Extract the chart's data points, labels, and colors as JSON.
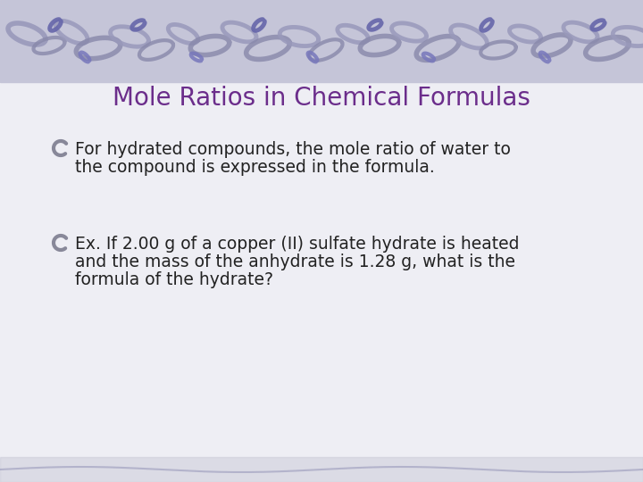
{
  "title": "Mole Ratios in Chemical Formulas",
  "title_color": "#6B2D8B",
  "title_fontsize": 20,
  "bullet1_line1": "For hydrated compounds, the mole ratio of water to",
  "bullet1_line2": "the compound is expressed in the formula.",
  "bullet2_line1": "Ex. If 2.00 g of a copper (II) sulfate hydrate is heated",
  "bullet2_line2": "and the mass of the anhydrate is 1.28 g, what is the",
  "bullet2_line3": "formula of the hydrate?",
  "body_fontsize": 13.5,
  "body_color": "#222222",
  "bg_color": "#EEEEF4",
  "header_bg": "#C5C5D8",
  "swirl_color1": "#8888AA",
  "swirl_color2": "#9999BB",
  "bullet_color": "#888899"
}
